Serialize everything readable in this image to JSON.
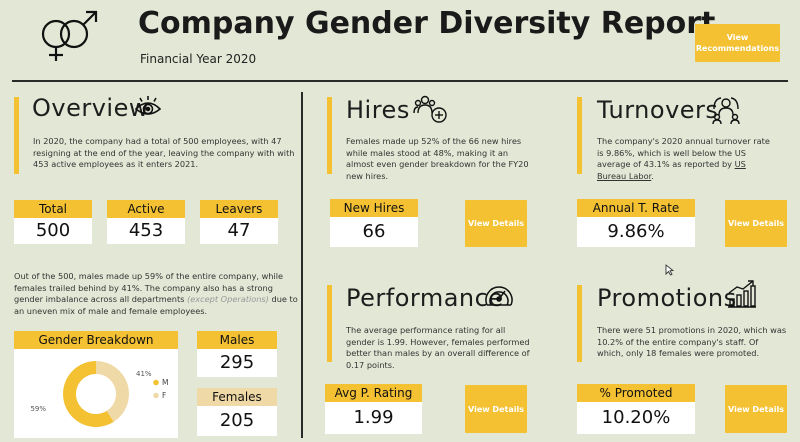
{
  "header": {
    "title": "Company Gender Diversity Report",
    "subtitle": "Financial Year 2020",
    "recommend_label": "View Recommendations"
  },
  "overview": {
    "title": "Overview",
    "text": "In 2020, the company had a total of 500 employees, with 47 resigning at the end of the year, leaving the company with with 453 active employees as it enters 2021.",
    "kpis": [
      {
        "label": "Total",
        "value": "500"
      },
      {
        "label": "Active",
        "value": "453"
      },
      {
        "label": "Leavers",
        "value": "47"
      }
    ],
    "text2_pre": "Out of the 500, males made up 59% of the entire company, while females trailed behind by 41%. The company also has a strong gender imbalance across all departments ",
    "text2_em": "(except Operations)",
    "text2_post": " due to an uneven mix of male and female employees."
  },
  "gender": {
    "title": "Gender Breakdown",
    "males_label": "Males",
    "males_value": "295",
    "females_label": "Females",
    "females_value": "205",
    "chart_data": {
      "type": "pie",
      "categories": [
        "M",
        "F"
      ],
      "values": [
        59,
        41
      ],
      "labels": [
        "59%",
        "41%"
      ],
      "title": "Gender Breakdown",
      "colors": [
        "#f4c133",
        "#efd9a6"
      ]
    }
  },
  "hires": {
    "title": "Hires",
    "text": "Females made up 52% of the 66 new hires while males stood at 48%, making it an almost even gender breakdown for the FY20 new hires.",
    "kpi_label": "New Hires",
    "kpi_value": "66",
    "btn": "View Details"
  },
  "turnovers": {
    "title": "Turnovers",
    "text_pre": "The company's 2020 annual turnover rate is 9.86%, which is well below the US average of 43.1% as reported by ",
    "link": "US Bureau Labor",
    "text_post": ".",
    "kpi_label": "Annual T. Rate",
    "kpi_value": "9.86%",
    "btn": "View Details"
  },
  "performance": {
    "title": "Performance",
    "text": "The average performance rating for all gender is 1.99. However, females performed better than males by an overall difference of 0.17 points.",
    "kpi_label": "Avg P. Rating",
    "kpi_value": "1.99",
    "btn": "View Details"
  },
  "promotions": {
    "title": "Promotions",
    "text": "There were 51 promotions in 2020, which was 10.2% of the entire company's staff. Of which, only 18 females were promoted.",
    "kpi_label": "% Promoted",
    "kpi_value": "10.20%",
    "btn": "View Details"
  },
  "icons": [
    "gender-symbols-icon",
    "eye-icon",
    "people-add-icon",
    "people-turnover-icon",
    "speedometer-icon",
    "growth-chart-icon",
    "mouse-cursor-icon"
  ]
}
